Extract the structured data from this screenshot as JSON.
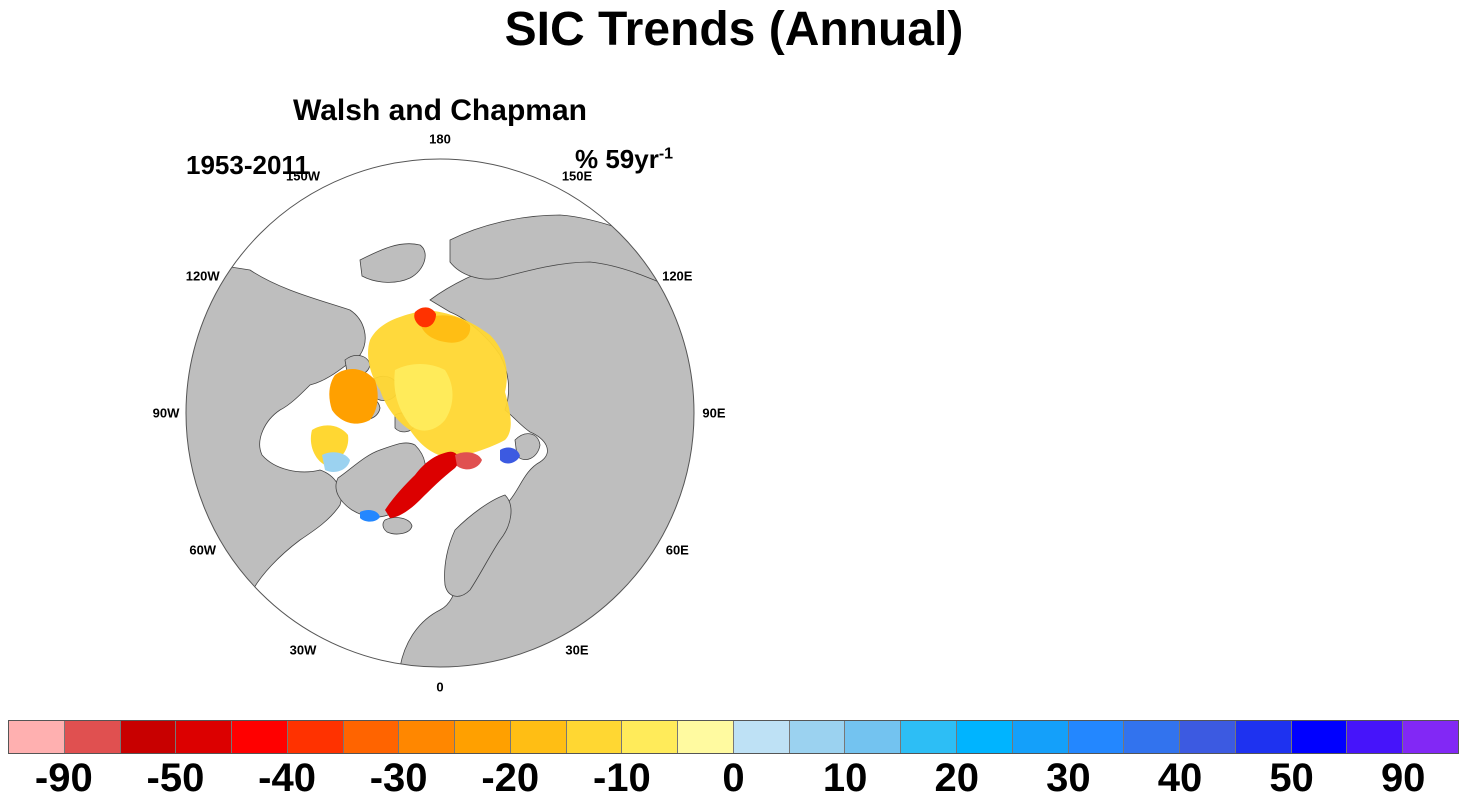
{
  "title": "SIC Trends (Annual)",
  "map": {
    "title": "Walsh and Chapman",
    "period": "1953-2011",
    "units_prefix": "% 59yr",
    "units_exp": "-1",
    "longitude_labels": [
      "180",
      "150E",
      "120E",
      "90E",
      "60E",
      "30E",
      "0",
      "30W",
      "60W",
      "90W",
      "120W",
      "150W"
    ],
    "colors": {
      "land": "#bebebe",
      "ocean": "#ffffff"
    }
  },
  "colorbar": {
    "colors": [
      "#ffb0b0",
      "#e05050",
      "#c80000",
      "#dc0000",
      "#ff0000",
      "#ff3200",
      "#ff6400",
      "#ff8700",
      "#ffa000",
      "#ffbe14",
      "#ffd732",
      "#ffeb5a",
      "#fffaa0",
      "#bee1f5",
      "#9bd2f0",
      "#73c3f0",
      "#2dbef5",
      "#00b4ff",
      "#14a0fa",
      "#2387ff",
      "#3273ee",
      "#3c5ae1",
      "#1e32f0",
      "#0000ff",
      "#4614fa",
      "#8228f5"
    ],
    "tick_labels": [
      "-90",
      "-50",
      "-40",
      "-30",
      "-20",
      "-10",
      "0",
      "10",
      "20",
      "30",
      "40",
      "50",
      "90"
    ]
  }
}
